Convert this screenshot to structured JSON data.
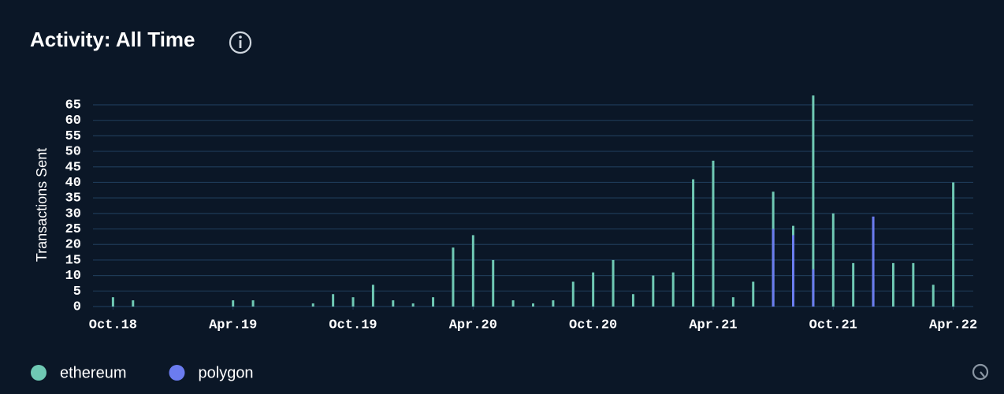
{
  "chart_data": {
    "type": "bar",
    "title": "Activity: All Time",
    "y_label": "Transactions Sent",
    "xlim": [
      "2018-09",
      "2022-05"
    ],
    "xticks": [
      {
        "value": "2018-10",
        "label": "Oct.18"
      },
      {
        "value": "2019-04",
        "label": "Apr.19"
      },
      {
        "value": "2019-10",
        "label": "Oct.19"
      },
      {
        "value": "2020-04",
        "label": "Apr.20"
      },
      {
        "value": "2020-10",
        "label": "Oct.20"
      },
      {
        "value": "2021-04",
        "label": "Apr.21"
      },
      {
        "value": "2021-10",
        "label": "Oct.21"
      },
      {
        "value": "2022-04",
        "label": "Apr.22"
      }
    ],
    "ylim": [
      0,
      65
    ],
    "yticks": [
      0,
      5,
      10,
      15,
      20,
      25,
      30,
      35,
      40,
      45,
      50,
      55,
      60,
      65
    ],
    "grid": true,
    "series": [
      {
        "name": "ethereum",
        "color": "#6fc9b4",
        "x": [
          "2018-10",
          "2018-11",
          "2019-04",
          "2019-05",
          "2019-08",
          "2019-09",
          "2019-10",
          "2019-11",
          "2019-12",
          "2020-01",
          "2020-02",
          "2020-03",
          "2020-04",
          "2020-05",
          "2020-06",
          "2020-07",
          "2020-08",
          "2020-09",
          "2020-10",
          "2020-11",
          "2020-12",
          "2021-01",
          "2021-02",
          "2021-03",
          "2021-04",
          "2021-05",
          "2021-06",
          "2021-07",
          "2021-08",
          "2021-09",
          "2021-10",
          "2021-11",
          "2021-12",
          "2022-01",
          "2022-02",
          "2022-03",
          "2022-04"
        ],
        "values": [
          3,
          2,
          2,
          2,
          1,
          4,
          3,
          7,
          2,
          1,
          3,
          19,
          23,
          15,
          2,
          1,
          2,
          8,
          11,
          15,
          4,
          10,
          11,
          41,
          47,
          3,
          8,
          37,
          26,
          68,
          30,
          14,
          9,
          14,
          14,
          7,
          40
        ]
      },
      {
        "name": "polygon",
        "color": "#6b7cf0",
        "x": [
          "2021-07",
          "2021-08",
          "2021-09",
          "2021-12"
        ],
        "values": [
          25,
          23,
          12,
          29
        ]
      }
    ]
  }
}
